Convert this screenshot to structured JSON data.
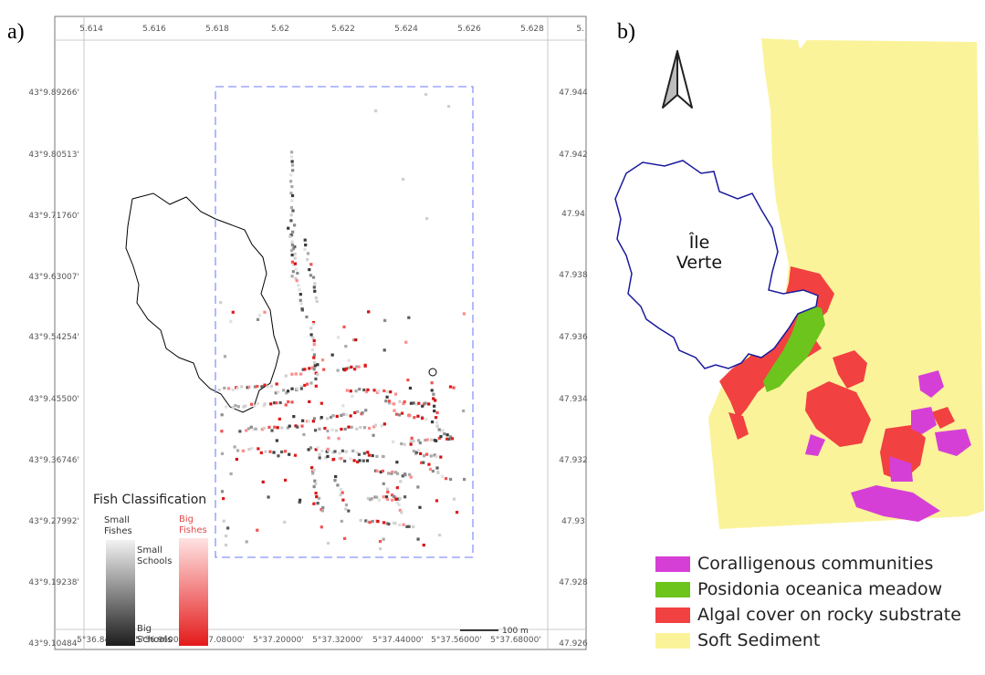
{
  "panel_a": {
    "letter": "a)",
    "top_ticks": [
      "5.614",
      "5.616",
      "5.618",
      "5.62",
      "5.622",
      "5.624",
      "5.626",
      "5.628",
      "5."
    ],
    "left_ticks": [
      "43°9.89266'",
      "43°9.80513'",
      "43°9.71760'",
      "43°9.63007'",
      "43°9.54254'",
      "43°9.45500'",
      "43°9.36746'",
      "43°9.27992'",
      "43°9.19238'",
      "43°9.10484'"
    ],
    "right_ticks": [
      "47.944",
      "47.942",
      "47.94",
      "47.938",
      "47.936",
      "47.934",
      "47.932",
      "47.93",
      "47.928",
      "47.926"
    ],
    "bottom_ticks": [
      "5°36.84000'",
      "5°36.96000'",
      "5°37.08000'",
      "5°37.20000'",
      "5°37.32000'",
      "5°37.44000'",
      "5°37.56000'",
      "5°37.68000'"
    ],
    "legend": {
      "title": "Fish Classification",
      "small_fishes": "Small\nFishes",
      "big_fishes": "Big\nFishes",
      "small_schools": "Small\nSchools",
      "big_schools": "Big\nSchools",
      "gray_top": "#f2f2f2",
      "gray_bottom": "#1c1c1c",
      "red_top": "#ffe3e3",
      "red_bottom": "#e41a1a"
    },
    "scale_bar": "100 m",
    "colors": {
      "frame": "#8a94ff",
      "island": "#000000"
    }
  },
  "panel_b": {
    "letter": "b)",
    "island_label_1": "Île",
    "island_label_2": "Verte",
    "legend": [
      {
        "label": "Coralligenous communities",
        "color": "#d63fd6"
      },
      {
        "label": "Posidonia oceanica meadow",
        "color": "#6cc41c"
      },
      {
        "label": "Algal cover on rocky substrate",
        "color": "#f24141"
      },
      {
        "label": "Soft Sediment",
        "color": "#fbf39a"
      }
    ],
    "colors": {
      "island_outline": "#1a1a9c"
    }
  }
}
